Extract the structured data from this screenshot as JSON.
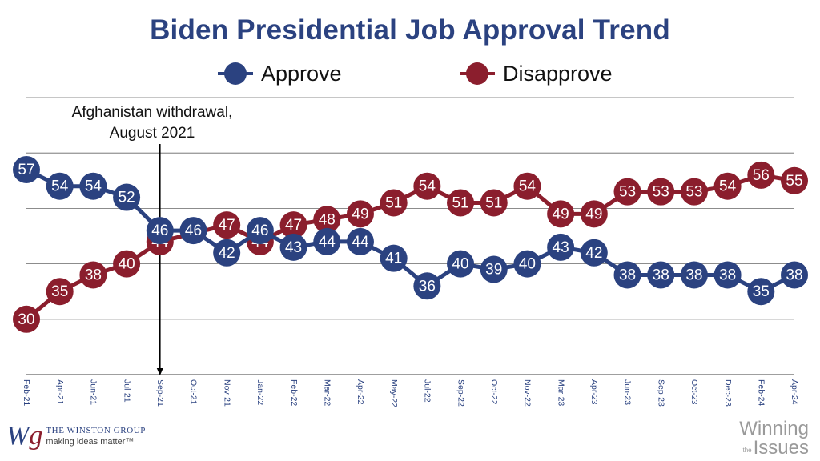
{
  "title": "Biden Presidential Job Approval Trend",
  "colors": {
    "approve": "#2b4280",
    "disapprove": "#8b1e2d",
    "grid": "#666666"
  },
  "annotation": {
    "line1": "Afghanistan withdrawal,",
    "line2": "August 2021",
    "position_label": "Sep-21"
  },
  "logos": {
    "left_mark": "Wg",
    "left_name": "THE WINSTON GROUP",
    "left_tagline": "making ideas matter™",
    "right_top": "Winning",
    "right_small": "the",
    "right_bottom": "Issues"
  },
  "chart_data": {
    "type": "line",
    "title": "Biden Presidential Job Approval Trend",
    "legend_position": "top-center",
    "grid": true,
    "categories": [
      "Feb-21",
      "Apr-21",
      "Jun-21",
      "Jul-21",
      "Sep-21",
      "Oct-21",
      "Nov-21",
      "Jan-22",
      "Feb-22",
      "Mar-22",
      "Apr-22",
      "May-22",
      "Jul-22",
      "Sep-22",
      "Oct-22",
      "Nov-22",
      "Mar-23",
      "Apr-23",
      "Jun-23",
      "Sep-23",
      "Oct-23",
      "Dec-23",
      "Feb-24",
      "Apr-24"
    ],
    "ylim": [
      20,
      70
    ],
    "series": [
      {
        "name": "Approve",
        "color": "#2b4280",
        "values": [
          57,
          54,
          54,
          52,
          46,
          46,
          42,
          46,
          43,
          44,
          44,
          41,
          36,
          40,
          39,
          40,
          43,
          42,
          38,
          38,
          38,
          38,
          35,
          38
        ]
      },
      {
        "name": "Disapprove",
        "color": "#8b1e2d",
        "values": [
          30,
          35,
          38,
          40,
          44,
          null,
          47,
          44,
          47,
          48,
          49,
          51,
          54,
          51,
          51,
          54,
          49,
          49,
          53,
          53,
          53,
          54,
          56,
          55
        ]
      }
    ]
  }
}
